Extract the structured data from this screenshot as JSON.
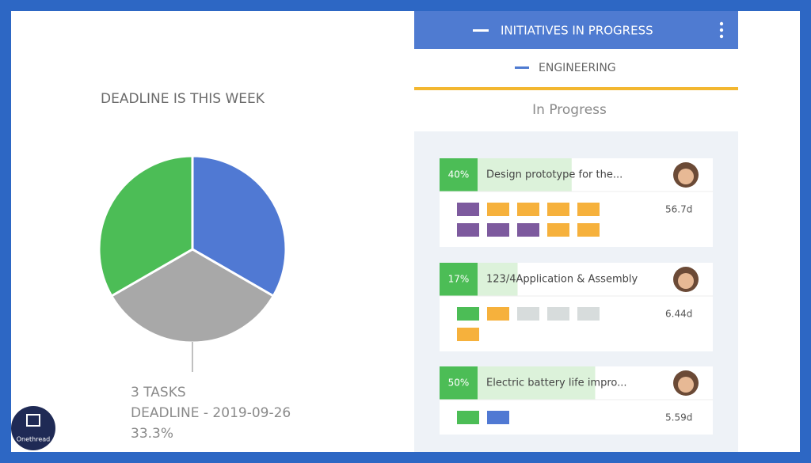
{
  "chart_data": {
    "type": "pie",
    "title": "DEADLINE IS THIS WEEK",
    "values": [
      33.3,
      33.3,
      33.3
    ],
    "colors": [
      "#5079d3",
      "#a8a8a8",
      "#4cbd56"
    ],
    "value_labels": [
      null,
      "33.3%",
      null
    ],
    "annotation": [
      "3 TASKS",
      "DEADLINE - 2019-09-26"
    ]
  },
  "panel": {
    "header": "INITIATIVES IN PROGRESS",
    "subheader": "ENGINEERING",
    "section": "In Progress",
    "cards": [
      {
        "progress": 40,
        "progress_label": "40%",
        "title": "Design prototype for the...",
        "duration": "56.7d",
        "blocks": [
          "#7d5a9e",
          "#f6b13c",
          "#f6b13c",
          "#f6b13c",
          "#f6b13c",
          "#7d5a9e",
          "#7d5a9e",
          "#7d5a9e",
          "#f6b13c",
          "#f6b13c"
        ]
      },
      {
        "progress": 17,
        "progress_label": "17%",
        "title": "123/4Application & Assembly",
        "duration": "6.44d",
        "blocks": [
          "#4cbd56",
          "#f6b13c",
          "#d7dcdc",
          "#d7dcdc",
          "#d7dcdc",
          "#f6b13c"
        ]
      },
      {
        "progress": 50,
        "progress_label": "50%",
        "title": "Electric battery life impro...",
        "duration": "5.59d",
        "blocks": [
          "#4cbd56",
          "#5079d3"
        ]
      }
    ]
  },
  "logo": "Onethread"
}
